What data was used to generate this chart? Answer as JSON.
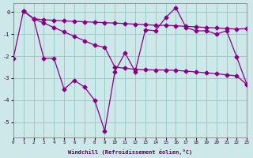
{
  "xlabel": "Windchill (Refroidissement éolien,°C)",
  "background_color": "#cce8e8",
  "grid_color": "#99cccc",
  "line_color": "#880088",
  "xlim": [
    0,
    23
  ],
  "ylim": [
    -5.7,
    0.4
  ],
  "yticks": [
    0,
    -1,
    -2,
    -3,
    -4,
    -5
  ],
  "xtick_labels": [
    "0",
    "1",
    "2",
    "3",
    "4",
    "5",
    "6",
    "7",
    "8",
    "9",
    "10",
    "11",
    "12",
    "13",
    "14",
    "15",
    "16",
    "17",
    "18",
    "19",
    "20",
    "21",
    "22",
    "23"
  ],
  "line1_x": [
    1,
    2,
    3,
    4,
    5,
    6,
    7,
    8,
    9,
    10,
    11,
    12,
    13,
    14,
    15,
    16,
    17,
    18,
    19,
    20,
    21,
    22,
    23
  ],
  "line1_y": [
    0.05,
    -0.3,
    -0.35,
    -0.37,
    -0.4,
    -0.42,
    -0.44,
    -0.46,
    -0.48,
    -0.5,
    -0.52,
    -0.55,
    -0.57,
    -0.6,
    -0.6,
    -0.62,
    -0.65,
    -0.67,
    -0.7,
    -0.72,
    -0.75,
    -0.77,
    -0.75
  ],
  "line2_x": [
    1,
    2,
    3,
    4,
    5,
    6,
    7,
    8,
    9,
    10,
    11,
    12,
    13,
    14,
    15,
    16,
    17,
    18,
    19,
    20,
    21,
    22,
    23
  ],
  "line2_y": [
    0.05,
    -0.3,
    -0.5,
    -0.7,
    -0.9,
    -1.1,
    -1.3,
    -1.5,
    -1.6,
    -2.5,
    -2.55,
    -2.6,
    -2.62,
    -2.63,
    -2.63,
    -2.65,
    -2.68,
    -2.72,
    -2.76,
    -2.8,
    -2.85,
    -2.9,
    -3.3
  ],
  "line3_x": [
    0,
    1,
    2,
    3,
    4,
    5,
    6,
    7,
    8,
    9,
    10,
    11,
    12,
    13,
    14,
    15,
    16,
    17,
    18,
    19,
    20,
    21,
    22,
    23
  ],
  "line3_y": [
    -2.1,
    0.05,
    -0.3,
    -2.1,
    -2.1,
    -3.5,
    -3.1,
    -3.4,
    -4.0,
    -5.4,
    -2.7,
    -1.85,
    -2.7,
    -0.8,
    -0.85,
    -0.25,
    0.2,
    -0.7,
    -0.85,
    -0.85,
    -1.0,
    -0.85,
    -2.05,
    -3.3
  ]
}
